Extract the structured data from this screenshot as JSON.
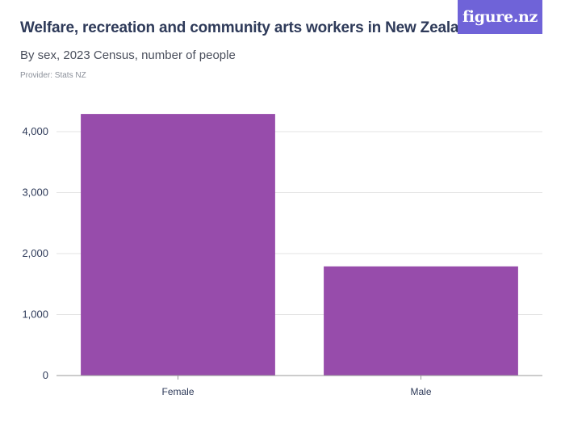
{
  "header": {
    "title": "Welfare, recreation and community arts workers in New Zealand",
    "subtitle": "By sex, 2023 Census, number of people",
    "provider": "Provider: Stats NZ",
    "logo_text": "figure.nz"
  },
  "colors": {
    "bar": "#974cab",
    "logo_bg": "#6f63d8",
    "grid": "#e3e3e3",
    "axis": "#9a9a9a",
    "text": "#2e3a59"
  },
  "chart_data": {
    "type": "bar",
    "title": "Welfare, recreation and community arts workers in New Zealand",
    "subtitle": "By sex, 2023 Census, number of people",
    "categories": [
      "Female",
      "Male"
    ],
    "values": [
      4290,
      1790
    ],
    "xlabel": "",
    "ylabel": "",
    "ylim": [
      0,
      4000
    ],
    "yticks": [
      0,
      1000,
      2000,
      3000,
      4000
    ],
    "ytick_labels": [
      "0",
      "1,000",
      "2,000",
      "3,000",
      "4,000"
    ],
    "grid": true,
    "legend": "none"
  }
}
